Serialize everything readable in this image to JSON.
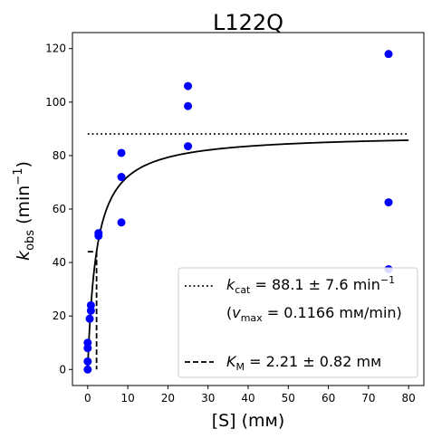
{
  "chart_data": {
    "type": "scatter",
    "title": "L122Q",
    "xlabel": "[S] (mм)",
    "ylabel_main": "k",
    "ylabel_sub": "obs",
    "ylabel_unit_open": " (min",
    "ylabel_unit_sup": "−1",
    "ylabel_unit_close": ")",
    "xlim": [
      -3.8,
      83.8
    ],
    "ylim": [
      -6,
      126
    ],
    "xticks": [
      0,
      10,
      20,
      30,
      40,
      50,
      60,
      70,
      80
    ],
    "yticks": [
      0,
      20,
      40,
      60,
      80,
      100,
      120
    ],
    "grid": false,
    "legend_position": "lower-right",
    "points_color": "#0000ff",
    "points": [
      {
        "x": 0,
        "y": 0
      },
      {
        "x": 0,
        "y": 3
      },
      {
        "x": 0,
        "y": 8
      },
      {
        "x": 0,
        "y": 10
      },
      {
        "x": 0.5,
        "y": 19
      },
      {
        "x": 0.8,
        "y": 22
      },
      {
        "x": 0.8,
        "y": 24
      },
      {
        "x": 2.7,
        "y": 50
      },
      {
        "x": 2.7,
        "y": 51
      },
      {
        "x": 8.4,
        "y": 55
      },
      {
        "x": 8.4,
        "y": 72
      },
      {
        "x": 8.4,
        "y": 81
      },
      {
        "x": 25,
        "y": 83.5
      },
      {
        "x": 25,
        "y": 98.5
      },
      {
        "x": 25,
        "y": 106
      },
      {
        "x": 75,
        "y": 37.5
      },
      {
        "x": 75,
        "y": 62.5
      },
      {
        "x": 75,
        "y": 118
      }
    ],
    "fit": {
      "kcat": 88.1,
      "Km": 2.21,
      "x_start": 0,
      "x_end": 80,
      "color": "#000000"
    },
    "kcat_line": {
      "y": 88.1,
      "x_start": 0,
      "x_end": 80,
      "style": "dotted"
    },
    "km_line": {
      "x": 2.21,
      "y_top": 44.05,
      "x_left": 0,
      "style": "dashed"
    },
    "legend": {
      "kcat_label": {
        "sym": "k",
        "sub": "cat",
        "text": " = 88.1 ± 7.6 min",
        "sup": "−1"
      },
      "vmax_label": {
        "open": "(",
        "sym": "v",
        "sub": "max",
        "text": " = 0.1166 mм/min)"
      },
      "km_label": {
        "sym": "K",
        "sub": "M",
        "text": " = 2.21 ± 0.82 mм"
      }
    }
  }
}
